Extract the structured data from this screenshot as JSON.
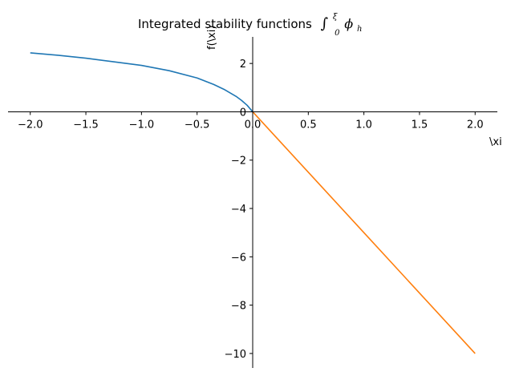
{
  "chart_data": {
    "type": "line",
    "title": "Integrated stability functions",
    "title_math": {
      "integral": "∫",
      "lower_limit": "0",
      "upper_limit": "ξ",
      "symbol": "ϕ",
      "subscript": "h"
    },
    "xlabel": "\\xi",
    "ylabel": "f(\\xi)",
    "xlim": [
      -2.2,
      2.2
    ],
    "ylim": [
      -10.6,
      3.1
    ],
    "xticks": [
      -2.0,
      -1.5,
      -1.0,
      -0.5,
      0.0,
      0.5,
      1.0,
      1.5,
      2.0
    ],
    "xtick_labels": [
      "−2.0",
      "−1.5",
      "−1.0",
      "−0.5",
      "0.0",
      "0.5",
      "1.0",
      "1.5",
      "2.0"
    ],
    "yticks": [
      2,
      0,
      -2,
      -4,
      -6,
      -8,
      -10
    ],
    "ytick_labels": [
      "2",
      "0",
      "−2",
      "−4",
      "−6",
      "−8",
      "−10"
    ],
    "grid": false,
    "spines": "centered",
    "series": [
      {
        "color": "#1f77b4",
        "x": [
          -2.0,
          -1.75,
          -1.5,
          -1.25,
          -1.0,
          -0.75,
          -0.5,
          -0.35,
          -0.25,
          -0.15,
          -0.1,
          -0.05,
          0.0
        ],
        "y": [
          2.44,
          2.34,
          2.22,
          2.07,
          1.92,
          1.7,
          1.4,
          1.13,
          0.91,
          0.64,
          0.47,
          0.27,
          0.0
        ]
      },
      {
        "color": "#ff7f0e",
        "x": [
          0.0,
          0.5,
          1.0,
          1.5,
          2.0
        ],
        "y": [
          0.0,
          -2.5,
          -5.0,
          -7.5,
          -10.0
        ]
      }
    ]
  }
}
